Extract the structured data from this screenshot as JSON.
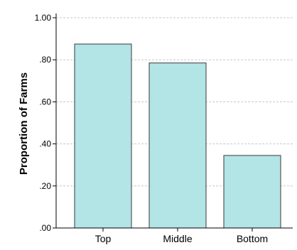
{
  "chart_data": {
    "type": "bar",
    "title": "",
    "xlabel": "",
    "ylabel": "Proportion of Farms",
    "categories": [
      "Top",
      "Middle",
      "Bottom"
    ],
    "values": [
      0.875,
      0.785,
      0.345
    ],
    "ylim": [
      0,
      1.0
    ],
    "yticks": [
      0.0,
      0.2,
      0.4,
      0.6,
      0.8,
      1.0
    ],
    "ytick_labels": [
      ".00",
      ".20",
      ".40",
      ".60",
      ".80",
      "1.00"
    ],
    "grid": "horizontal dashed",
    "legend": "none",
    "colors": {
      "bar_fill": "#b3e4e6",
      "bar_stroke": "#3a3a3a",
      "grid": "#c8c8c8",
      "axis": "#000000"
    }
  }
}
